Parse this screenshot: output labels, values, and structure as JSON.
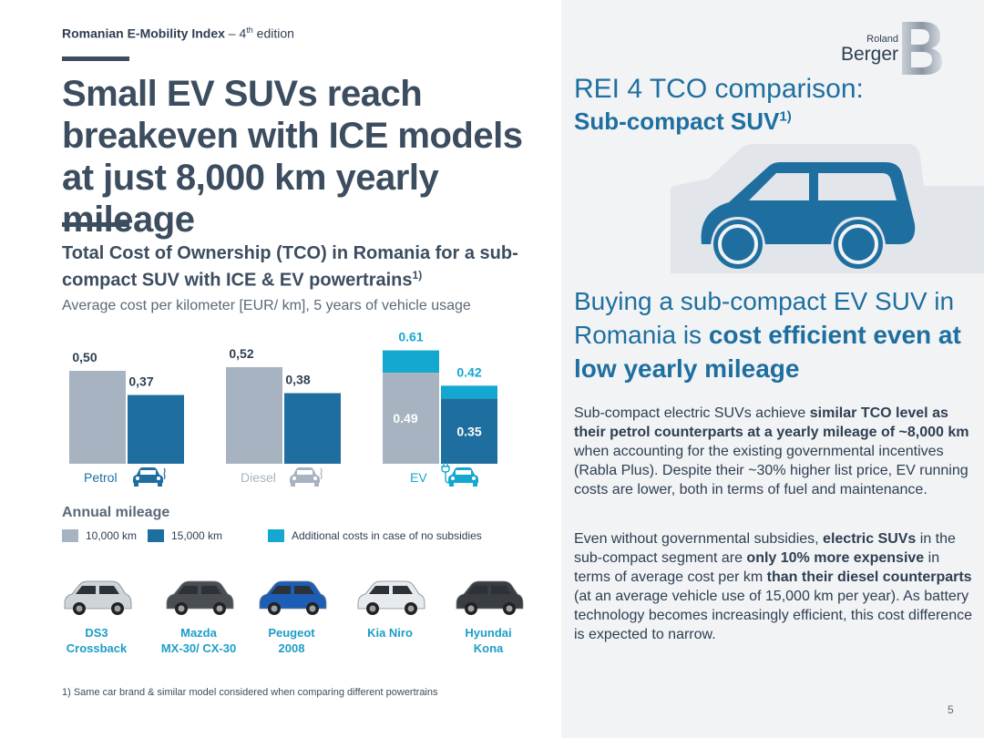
{
  "header": {
    "series_bold": "Romanian E-Mobility Index",
    "dash": " – 4",
    "sup": "th",
    "rest": " edition"
  },
  "title": "Small EV SUVs reach breakeven with ICE models at just 8,000 km yearly mileage",
  "tco": {
    "heading": "Total Cost of Ownership (TCO) in Romania for a sub-compact SUV with ICE & EV powertrains",
    "heading_sup": "1)",
    "subheading": "Average cost per kilometer [EUR/ km], 5 years of vehicle usage"
  },
  "chart_data": {
    "type": "bar",
    "categories": [
      "Petrol",
      "Diesel",
      "EV"
    ],
    "series": [
      {
        "name": "10,000 km",
        "values": [
          0.5,
          0.52,
          0.49
        ],
        "labels": [
          "0,50",
          "0,52",
          "0.49"
        ]
      },
      {
        "name": "15,000 km",
        "values": [
          0.37,
          0.38,
          0.35
        ],
        "labels": [
          "0,37",
          "0,38",
          "0.35"
        ]
      }
    ],
    "ev_totals_no_subsidy": {
      "name": "Additional costs in case of no subsidies",
      "values": [
        0.61,
        0.42
      ],
      "labels": [
        "0.61",
        "0.42"
      ]
    },
    "ylim": [
      0,
      0.65
    ],
    "colors": {
      "10k": "#a7b3c0",
      "15k": "#1e6f9f",
      "extra": "#14a7cf"
    }
  },
  "legend": {
    "title": "Annual mileage",
    "items": [
      "10,000 km",
      "15,000 km",
      "Additional costs in case of no subsidies"
    ]
  },
  "models": [
    {
      "name": "DS3 Crossback",
      "line1": "DS3",
      "line2": "Crossback",
      "color": "#cfd4d9"
    },
    {
      "name": "Mazda MX-30/ CX-30",
      "line1": "Mazda",
      "line2": "MX-30/ CX-30",
      "color": "#4a4d52"
    },
    {
      "name": "Peugeot 2008",
      "line1": "Peugeot",
      "line2": "2008",
      "color": "#1e5db5"
    },
    {
      "name": "Kia Niro",
      "line1": "Kia Niro",
      "line2": "",
      "color": "#e8ebee"
    },
    {
      "name": "Hyundai Kona",
      "line1": "Hyundai",
      "line2": "Kona",
      "color": "#3a3d42"
    }
  ],
  "footnote": "1) Same car brand & similar model considered when comparing different powertrains",
  "logo": {
    "line1": "Roland",
    "line2": "Berger"
  },
  "rei": {
    "title": "REI 4 TCO comparison:",
    "sub": "Sub-compact SUV",
    "sub_sup": "1)"
  },
  "buying": {
    "pre": "Buying a sub-compact EV SUV in Romania is ",
    "bold": "cost efficient even at low yearly mileage"
  },
  "para1": {
    "t1": "Sub-compact electric SUVs achieve ",
    "b1": "similar TCO level as their petrol counterparts at a yearly mileage of ~8,000 km",
    "t2": " when accounting for the existing governmental incentives (Rabla Plus). Despite their ~30% higher list price, EV running costs are lower, both in terms of fuel and maintenance."
  },
  "para2": {
    "t1": "Even without governmental subsidies, ",
    "b1": "electric SUVs",
    "t2": " in the sub-compact segment are ",
    "b2": "only 10% more expensive",
    "t3": " in terms of average cost per km ",
    "b3": "than their diesel counterparts",
    "t4": " (at an average vehicle use of 15,000 km per year). As battery technology becomes increasingly efficient, this cost difference is expected to narrow."
  },
  "page_number": "5",
  "colors": {
    "dark": "#3c4d5f",
    "blue": "#1e6f9f",
    "cyan": "#14a7cf",
    "panel": "#f2f3f5"
  }
}
